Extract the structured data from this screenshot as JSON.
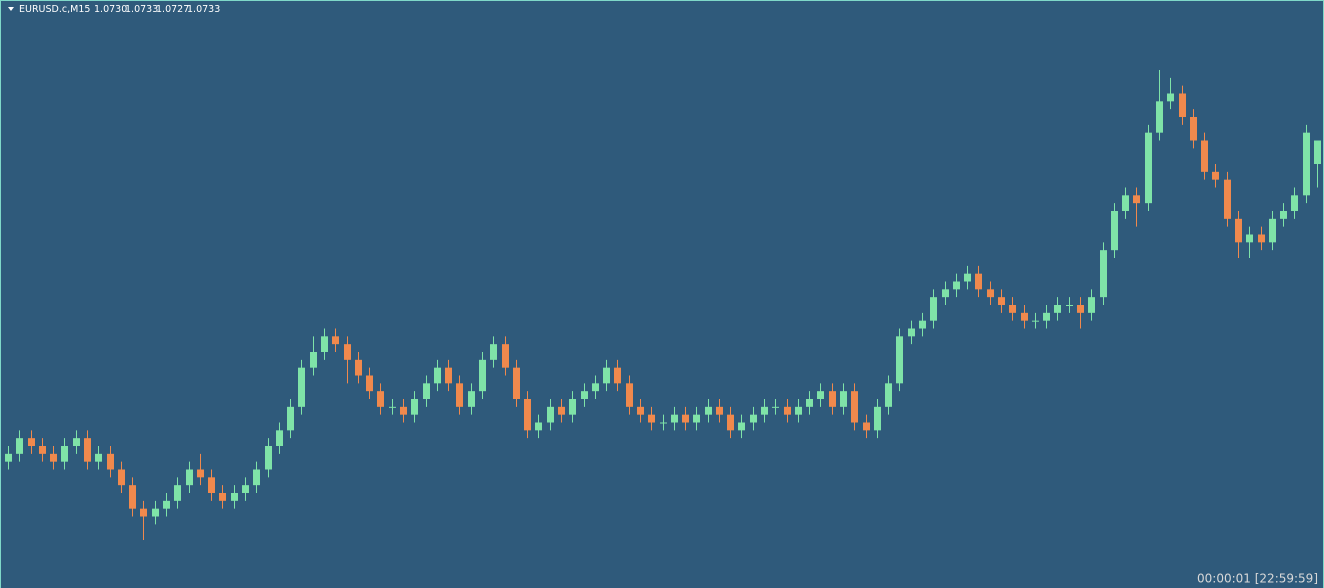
{
  "header": {
    "symbol": "EURUSD.c,M15",
    "quote": [
      "1.0730",
      "1.0733",
      "1.0727",
      "1.0733"
    ]
  },
  "chart_data": {
    "type": "candlestick",
    "up_color": "#7fe3a8",
    "down_color": "#f0894d",
    "open": [
      1.0692,
      1.0693,
      1.0695,
      1.0694,
      1.0693,
      1.0692,
      1.0694,
      1.0695,
      1.0692,
      1.0693,
      1.0691,
      1.0689,
      1.0686,
      1.0685,
      1.0686,
      1.0687,
      1.0689,
      1.0691,
      1.069,
      1.0688,
      1.0687,
      1.0688,
      1.0689,
      1.0691,
      1.0694,
      1.0696,
      1.0699,
      1.0704,
      1.0706,
      1.0708,
      1.0707,
      1.0705,
      1.0703,
      1.0701,
      1.0699,
      1.0699,
      1.0698,
      1.07,
      1.0702,
      1.0704,
      1.0702,
      1.0699,
      1.0701,
      1.0705,
      1.0707,
      1.0704,
      1.07,
      1.0696,
      1.0697,
      1.0699,
      1.0698,
      1.07,
      1.0701,
      1.0702,
      1.0704,
      1.0702,
      1.0699,
      1.0698,
      1.0697,
      1.0697,
      1.0698,
      1.0697,
      1.0698,
      1.0699,
      1.0698,
      1.0696,
      1.0697,
      1.0698,
      1.0699,
      1.0699,
      1.0698,
      1.0699,
      1.07,
      1.0701,
      1.0699,
      1.0701,
      1.0697,
      1.0696,
      1.0699,
      1.0702,
      1.0708,
      1.0709,
      1.071,
      1.0713,
      1.0714,
      1.0715,
      1.0716,
      1.0714,
      1.0713,
      1.0712,
      1.0711,
      1.071,
      1.071,
      1.0711,
      1.0712,
      1.0712,
      1.0711,
      1.0713,
      1.0719,
      1.0724,
      1.0726,
      1.0725,
      1.0734,
      1.0738,
      1.0739,
      1.0736,
      1.0733,
      1.0729,
      1.0728,
      1.0723,
      1.072,
      1.0721,
      1.072,
      1.0723,
      1.0724,
      1.0726,
      1.073
    ],
    "high": [
      1.0694,
      1.0696,
      1.0696,
      1.0695,
      1.0694,
      1.0695,
      1.0696,
      1.0696,
      1.0694,
      1.0694,
      1.0692,
      1.069,
      1.0687,
      1.0687,
      1.0688,
      1.069,
      1.0692,
      1.0693,
      1.0691,
      1.0689,
      1.0689,
      1.069,
      1.0692,
      1.0695,
      1.0697,
      1.07,
      1.0705,
      1.0708,
      1.0709,
      1.0709,
      1.0708,
      1.0706,
      1.0704,
      1.0702,
      1.07,
      1.07,
      1.0701,
      1.0703,
      1.0705,
      1.0705,
      1.0703,
      1.0702,
      1.0706,
      1.0708,
      1.0708,
      1.0705,
      1.0701,
      1.0698,
      1.07,
      1.07,
      1.0701,
      1.0702,
      1.0703,
      1.0705,
      1.0705,
      1.0703,
      1.07,
      1.0699,
      1.0698,
      1.0699,
      1.0699,
      1.0699,
      1.07,
      1.07,
      1.0699,
      1.0698,
      1.0699,
      1.07,
      1.07,
      1.07,
      1.07,
      1.0701,
      1.0702,
      1.0702,
      1.0702,
      1.0702,
      1.0698,
      1.07,
      1.0703,
      1.0709,
      1.071,
      1.0711,
      1.0714,
      1.0715,
      1.0716,
      1.0717,
      1.0717,
      1.0715,
      1.0714,
      1.0713,
      1.0712,
      1.0711,
      1.0712,
      1.0713,
      1.0713,
      1.0713,
      1.0714,
      1.072,
      1.0725,
      1.0727,
      1.0727,
      1.0735,
      1.0742,
      1.0741,
      1.074,
      1.0737,
      1.0734,
      1.073,
      1.0729,
      1.0724,
      1.0722,
      1.0722,
      1.0724,
      1.0725,
      1.0727,
      1.0735,
      1.0733
    ],
    "low": [
      1.0691,
      1.0692,
      1.0693,
      1.0692,
      1.0691,
      1.0691,
      1.0693,
      1.0691,
      1.0691,
      1.069,
      1.0688,
      1.0685,
      1.0682,
      1.0684,
      1.0685,
      1.0686,
      1.0688,
      1.0689,
      1.0687,
      1.0686,
      1.0686,
      1.0687,
      1.0688,
      1.069,
      1.0693,
      1.0695,
      1.0698,
      1.0703,
      1.0705,
      1.0706,
      1.0702,
      1.0702,
      1.07,
      1.0698,
      1.0698,
      1.0697,
      1.0697,
      1.0699,
      1.0701,
      1.0701,
      1.0698,
      1.0698,
      1.07,
      1.0704,
      1.0703,
      1.0699,
      1.0695,
      1.0695,
      1.0696,
      1.0697,
      1.0697,
      1.0699,
      1.07,
      1.0701,
      1.0701,
      1.0698,
      1.0697,
      1.0696,
      1.0696,
      1.0696,
      1.0696,
      1.0696,
      1.0697,
      1.0697,
      1.0695,
      1.0695,
      1.0696,
      1.0697,
      1.0698,
      1.0697,
      1.0697,
      1.0698,
      1.0699,
      1.0698,
      1.0698,
      1.0696,
      1.0695,
      1.0695,
      1.0698,
      1.0701,
      1.0707,
      1.0708,
      1.0709,
      1.0712,
      1.0713,
      1.0714,
      1.0713,
      1.0712,
      1.0711,
      1.071,
      1.0709,
      1.0709,
      1.0709,
      1.071,
      1.0711,
      1.0709,
      1.071,
      1.0712,
      1.0718,
      1.0723,
      1.0722,
      1.0724,
      1.0733,
      1.0737,
      1.0735,
      1.0732,
      1.0728,
      1.0727,
      1.0722,
      1.0718,
      1.0718,
      1.0719,
      1.0719,
      1.0722,
      1.0723,
      1.0725,
      1.0727
    ],
    "close": [
      1.0693,
      1.0695,
      1.0694,
      1.0693,
      1.0692,
      1.0694,
      1.0695,
      1.0692,
      1.0693,
      1.0691,
      1.0689,
      1.0686,
      1.0685,
      1.0686,
      1.0687,
      1.0689,
      1.0691,
      1.069,
      1.0688,
      1.0687,
      1.0688,
      1.0689,
      1.0691,
      1.0694,
      1.0696,
      1.0699,
      1.0704,
      1.0706,
      1.0708,
      1.0707,
      1.0705,
      1.0703,
      1.0701,
      1.0699,
      1.0699,
      1.0698,
      1.07,
      1.0702,
      1.0704,
      1.0702,
      1.0699,
      1.0701,
      1.0705,
      1.0707,
      1.0704,
      1.07,
      1.0696,
      1.0697,
      1.0699,
      1.0698,
      1.07,
      1.0701,
      1.0702,
      1.0704,
      1.0702,
      1.0699,
      1.0698,
      1.0697,
      1.0697,
      1.0698,
      1.0697,
      1.0698,
      1.0699,
      1.0698,
      1.0696,
      1.0697,
      1.0698,
      1.0699,
      1.0699,
      1.0698,
      1.0699,
      1.07,
      1.0701,
      1.0699,
      1.0701,
      1.0697,
      1.0696,
      1.0699,
      1.0702,
      1.0708,
      1.0709,
      1.071,
      1.0713,
      1.0714,
      1.0715,
      1.0716,
      1.0714,
      1.0713,
      1.0712,
      1.0711,
      1.071,
      1.071,
      1.0711,
      1.0712,
      1.0712,
      1.0711,
      1.0713,
      1.0719,
      1.0724,
      1.0726,
      1.0725,
      1.0734,
      1.0738,
      1.0739,
      1.0736,
      1.0733,
      1.0729,
      1.0728,
      1.0723,
      1.072,
      1.0721,
      1.072,
      1.0723,
      1.0724,
      1.0726,
      1.0734,
      1.0733
    ]
  },
  "footer": {
    "timer": "00:00:01 [22:59:59]"
  }
}
